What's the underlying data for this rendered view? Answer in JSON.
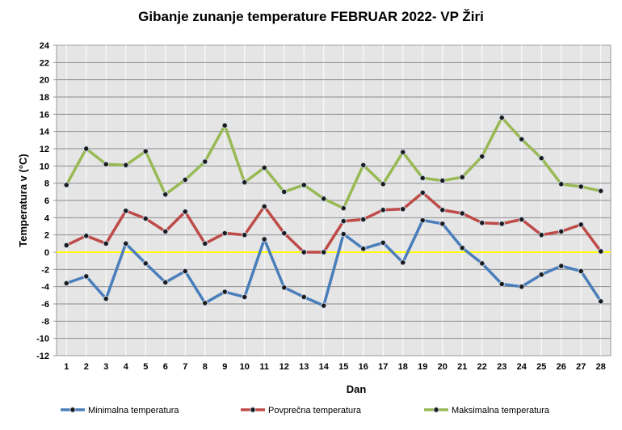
{
  "chart_data": {
    "type": "line",
    "title": "Gibanje zunanje temperature FEBRUAR 2022- VP Žiri",
    "xlabel": "Dan",
    "ylabel": "Temperatura v (°C)",
    "x": [
      1,
      2,
      3,
      4,
      5,
      6,
      7,
      8,
      9,
      10,
      11,
      12,
      13,
      14,
      15,
      16,
      17,
      18,
      19,
      20,
      21,
      22,
      23,
      24,
      25,
      26,
      27,
      28
    ],
    "ylim": [
      -12,
      24
    ],
    "yticks": [
      -12,
      -10,
      -8,
      -6,
      -4,
      -2,
      0,
      2,
      4,
      6,
      8,
      10,
      12,
      14,
      16,
      18,
      20,
      22,
      24
    ],
    "grid": true,
    "zero_line_color": "#ffff00",
    "legend_position": "bottom",
    "series": [
      {
        "name": "Minimalna temperatura",
        "color": "#4a7ebb",
        "values": [
          -3.6,
          -2.8,
          -5.4,
          1.0,
          -1.3,
          -3.5,
          -2.2,
          -5.9,
          -4.6,
          -5.2,
          1.5,
          -4.1,
          -5.2,
          -6.2,
          2.1,
          0.4,
          1.1,
          -1.2,
          3.7,
          3.3,
          0.5,
          -1.3,
          -3.7,
          -4.0,
          -2.6,
          -1.6,
          -2.2,
          -5.7
        ]
      },
      {
        "name": "Povprečna temperatura",
        "color": "#be4b48",
        "values": [
          0.8,
          1.9,
          1.0,
          4.8,
          3.9,
          2.4,
          4.7,
          1.0,
          2.2,
          2.0,
          5.3,
          2.2,
          0.0,
          0.0,
          3.6,
          3.8,
          4.9,
          5.0,
          6.9,
          4.9,
          4.5,
          3.4,
          3.3,
          3.8,
          2.0,
          2.4,
          3.2,
          0.1
        ]
      },
      {
        "name": "Maksimalna temperatura",
        "color": "#98b954",
        "values": [
          7.8,
          12.0,
          10.2,
          10.1,
          11.7,
          6.7,
          8.4,
          10.5,
          14.7,
          8.1,
          9.8,
          7.0,
          7.8,
          6.2,
          5.1,
          10.1,
          7.9,
          11.6,
          8.6,
          8.3,
          8.7,
          11.1,
          15.6,
          13.1,
          10.9,
          7.9,
          7.6,
          7.1
        ]
      }
    ]
  }
}
